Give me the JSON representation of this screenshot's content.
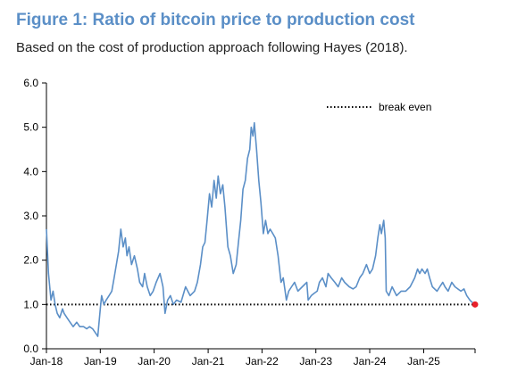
{
  "header": {
    "title": "Figure 1: Ratio of bitcoin price to production cost",
    "subtitle": "Based on the cost of production approach following Hayes (2018)."
  },
  "chart_data": {
    "type": "line",
    "title": "Figure 1: Ratio of bitcoin price to production cost",
    "subtitle": "Based on the cost of production approach following Hayes (2018).",
    "xlabel": "",
    "ylabel": "",
    "ylim": [
      0,
      6
    ],
    "xlim": [
      "2018-01-01",
      "2025-12-15"
    ],
    "yticks": [
      "0.0",
      "1.0",
      "2.0",
      "3.0",
      "4.0",
      "5.0",
      "6.0"
    ],
    "xticks": [
      "Jan-18",
      "Jan-19",
      "Jan-20",
      "Jan-21",
      "Jan-22",
      "Jan-23",
      "Jan-24",
      "Jan-25"
    ],
    "grid": false,
    "legend": {
      "position": "top-right",
      "entries": [
        "break even"
      ]
    },
    "colors": {
      "series": "#5b8fc7",
      "break_even": "#000000",
      "last_point": "#e8202a"
    },
    "series": [
      {
        "name": "",
        "values": [
          [
            "2018-01-01",
            2.7
          ],
          [
            "2018-01-15",
            1.7
          ],
          [
            "2018-02-01",
            1.1
          ],
          [
            "2018-02-15",
            1.3
          ],
          [
            "2018-03-01",
            1.0
          ],
          [
            "2018-03-15",
            0.8
          ],
          [
            "2018-04-01",
            0.7
          ],
          [
            "2018-04-20",
            0.9
          ],
          [
            "2018-05-01",
            0.8
          ],
          [
            "2018-05-20",
            0.7
          ],
          [
            "2018-06-10",
            0.6
          ],
          [
            "2018-07-01",
            0.5
          ],
          [
            "2018-07-25",
            0.6
          ],
          [
            "2018-08-15",
            0.5
          ],
          [
            "2018-09-10",
            0.5
          ],
          [
            "2018-10-01",
            0.45
          ],
          [
            "2018-10-20",
            0.5
          ],
          [
            "2018-11-10",
            0.45
          ],
          [
            "2018-12-01",
            0.35
          ],
          [
            "2018-12-15",
            0.28
          ],
          [
            "2019-01-01",
            0.9
          ],
          [
            "2019-01-10",
            1.2
          ],
          [
            "2019-01-25",
            1.0
          ],
          [
            "2019-02-10",
            1.1
          ],
          [
            "2019-03-01",
            1.2
          ],
          [
            "2019-03-20",
            1.3
          ],
          [
            "2019-04-05",
            1.6
          ],
          [
            "2019-04-20",
            1.9
          ],
          [
            "2019-05-05",
            2.2
          ],
          [
            "2019-05-20",
            2.7
          ],
          [
            "2019-06-05",
            2.3
          ],
          [
            "2019-06-20",
            2.5
          ],
          [
            "2019-07-01",
            2.1
          ],
          [
            "2019-07-15",
            2.3
          ],
          [
            "2019-08-01",
            1.9
          ],
          [
            "2019-08-20",
            2.1
          ],
          [
            "2019-09-10",
            1.8
          ],
          [
            "2019-09-25",
            1.5
          ],
          [
            "2019-10-15",
            1.4
          ],
          [
            "2019-10-28",
            1.7
          ],
          [
            "2019-11-15",
            1.4
          ],
          [
            "2019-12-05",
            1.2
          ],
          [
            "2019-12-25",
            1.3
          ],
          [
            "2020-01-15",
            1.5
          ],
          [
            "2020-02-10",
            1.7
          ],
          [
            "2020-03-01",
            1.4
          ],
          [
            "2020-03-15",
            0.8
          ],
          [
            "2020-04-01",
            1.1
          ],
          [
            "2020-04-20",
            1.2
          ],
          [
            "2020-05-10",
            1.0
          ],
          [
            "2020-06-01",
            1.1
          ],
          [
            "2020-07-01",
            1.05
          ],
          [
            "2020-08-01",
            1.4
          ],
          [
            "2020-09-01",
            1.2
          ],
          [
            "2020-10-01",
            1.3
          ],
          [
            "2020-10-20",
            1.5
          ],
          [
            "2020-11-10",
            1.9
          ],
          [
            "2020-11-25",
            2.3
          ],
          [
            "2020-12-10",
            2.4
          ],
          [
            "2020-12-25",
            2.9
          ],
          [
            "2021-01-10",
            3.5
          ],
          [
            "2021-01-25",
            3.2
          ],
          [
            "2021-02-10",
            3.8
          ],
          [
            "2021-02-25",
            3.4
          ],
          [
            "2021-03-10",
            3.9
          ],
          [
            "2021-03-25",
            3.5
          ],
          [
            "2021-04-10",
            3.7
          ],
          [
            "2021-04-25",
            3.2
          ],
          [
            "2021-05-15",
            2.3
          ],
          [
            "2021-06-01",
            2.1
          ],
          [
            "2021-06-20",
            1.7
          ],
          [
            "2021-07-10",
            1.9
          ],
          [
            "2021-07-25",
            2.4
          ],
          [
            "2021-08-10",
            2.9
          ],
          [
            "2021-08-25",
            3.6
          ],
          [
            "2021-09-10",
            3.8
          ],
          [
            "2021-09-25",
            4.3
          ],
          [
            "2021-10-10",
            4.5
          ],
          [
            "2021-10-20",
            5.0
          ],
          [
            "2021-11-01",
            4.8
          ],
          [
            "2021-11-10",
            5.1
          ],
          [
            "2021-11-25",
            4.5
          ],
          [
            "2021-12-10",
            3.8
          ],
          [
            "2021-12-25",
            3.3
          ],
          [
            "2022-01-10",
            2.6
          ],
          [
            "2022-01-25",
            2.9
          ],
          [
            "2022-02-10",
            2.6
          ],
          [
            "2022-02-25",
            2.7
          ],
          [
            "2022-03-15",
            2.6
          ],
          [
            "2022-04-01",
            2.5
          ],
          [
            "2022-04-20",
            2.1
          ],
          [
            "2022-05-10",
            1.5
          ],
          [
            "2022-05-25",
            1.6
          ],
          [
            "2022-06-15",
            1.1
          ],
          [
            "2022-07-01",
            1.3
          ],
          [
            "2022-07-20",
            1.4
          ],
          [
            "2022-08-10",
            1.5
          ],
          [
            "2022-09-01",
            1.3
          ],
          [
            "2022-10-01",
            1.4
          ],
          [
            "2022-11-01",
            1.5
          ],
          [
            "2022-11-10",
            1.1
          ],
          [
            "2022-12-01",
            1.2
          ],
          [
            "2022-12-20",
            1.25
          ],
          [
            "2023-01-10",
            1.3
          ],
          [
            "2023-01-25",
            1.5
          ],
          [
            "2023-02-15",
            1.6
          ],
          [
            "2023-03-10",
            1.4
          ],
          [
            "2023-03-25",
            1.7
          ],
          [
            "2023-04-15",
            1.6
          ],
          [
            "2023-05-10",
            1.5
          ],
          [
            "2023-06-01",
            1.4
          ],
          [
            "2023-06-25",
            1.6
          ],
          [
            "2023-07-15",
            1.5
          ],
          [
            "2023-08-15",
            1.4
          ],
          [
            "2023-09-10",
            1.35
          ],
          [
            "2023-10-01",
            1.4
          ],
          [
            "2023-10-25",
            1.6
          ],
          [
            "2023-11-15",
            1.7
          ],
          [
            "2023-12-10",
            1.9
          ],
          [
            "2024-01-01",
            1.7
          ],
          [
            "2024-01-20",
            1.8
          ],
          [
            "2024-02-10",
            2.1
          ],
          [
            "2024-02-25",
            2.5
          ],
          [
            "2024-03-10",
            2.8
          ],
          [
            "2024-03-20",
            2.6
          ],
          [
            "2024-04-05",
            2.9
          ],
          [
            "2024-04-15",
            2.5
          ],
          [
            "2024-04-22",
            1.3
          ],
          [
            "2024-05-10",
            1.2
          ],
          [
            "2024-06-01",
            1.4
          ],
          [
            "2024-07-01",
            1.2
          ],
          [
            "2024-08-01",
            1.3
          ],
          [
            "2024-09-01",
            1.3
          ],
          [
            "2024-10-01",
            1.4
          ],
          [
            "2024-11-01",
            1.6
          ],
          [
            "2024-11-20",
            1.8
          ],
          [
            "2024-12-05",
            1.7
          ],
          [
            "2024-12-20",
            1.8
          ],
          [
            "2025-01-10",
            1.7
          ],
          [
            "2025-01-25",
            1.8
          ],
          [
            "2025-02-10",
            1.6
          ],
          [
            "2025-03-01",
            1.4
          ],
          [
            "2025-04-01",
            1.3
          ],
          [
            "2025-04-20",
            1.4
          ],
          [
            "2025-05-10",
            1.5
          ],
          [
            "2025-05-25",
            1.4
          ],
          [
            "2025-06-15",
            1.3
          ],
          [
            "2025-07-10",
            1.5
          ],
          [
            "2025-08-01",
            1.4
          ],
          [
            "2025-08-20",
            1.35
          ],
          [
            "2025-09-10",
            1.3
          ],
          [
            "2025-10-01",
            1.35
          ],
          [
            "2025-10-20",
            1.2
          ],
          [
            "2025-11-10",
            1.1
          ],
          [
            "2025-11-25",
            1.05
          ],
          [
            "2025-12-15",
            1.0
          ]
        ]
      }
    ],
    "reference_line": {
      "y": 1.0,
      "label": "break even",
      "style": "dotted"
    },
    "highlight_point": [
      "2025-12-15",
      1.0
    ]
  }
}
